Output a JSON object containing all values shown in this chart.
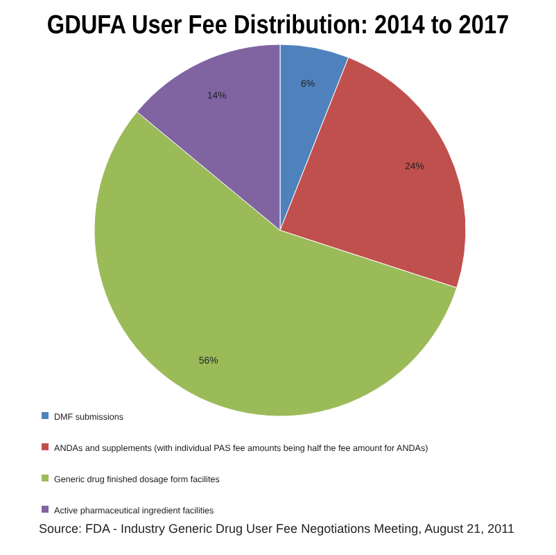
{
  "chart_data": {
    "type": "pie",
    "title": "GDUFA User Fee Distribution: 2014 to 2017",
    "categories": [
      "DMF submissions",
      "ANDAs and supplements (with individual PAS fee amounts being half the fee amount for ANDAs)",
      "Generic drug finished dosage form facilites",
      "Active pharmaceutical ingredient facilities"
    ],
    "values": [
      6,
      24,
      56,
      14
    ],
    "colors": [
      "#4f81bd",
      "#c0504d",
      "#9bbb59",
      "#8064a2"
    ],
    "value_labels": [
      "6%",
      "24%",
      "56%",
      "14%"
    ],
    "legend": "bottom",
    "annotations": [
      "Source: FDA - Industry Generic Drug User Fee Negotiations Meeting, August 21, 2011"
    ]
  }
}
